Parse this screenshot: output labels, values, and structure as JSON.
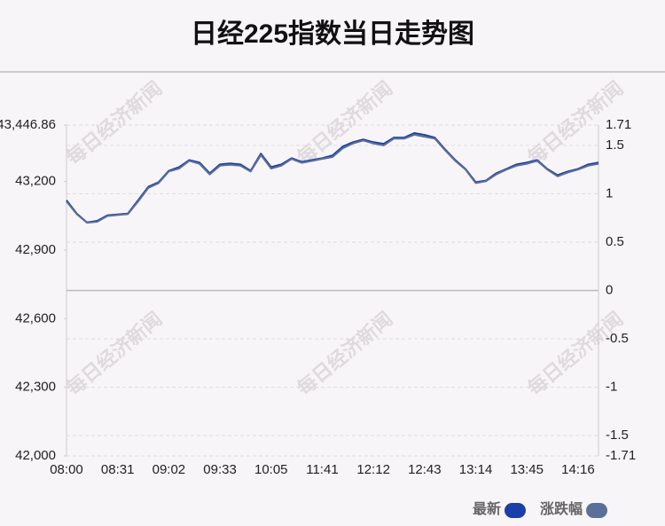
{
  "chart_data": {
    "type": "line",
    "title": "日经225指数当日走势图",
    "watermark": "每日经济新闻",
    "categories": [
      "08:00",
      null,
      null,
      null,
      null,
      "08:31",
      null,
      null,
      null,
      null,
      "09:02",
      null,
      null,
      null,
      null,
      "09:33",
      null,
      null,
      null,
      null,
      "10:05",
      null,
      null,
      null,
      null,
      "11:41",
      null,
      null,
      null,
      null,
      "12:12",
      null,
      null,
      null,
      null,
      "12:43",
      null,
      null,
      null,
      null,
      "13:14",
      null,
      null,
      null,
      null,
      "13:45",
      null,
      null,
      null,
      null,
      "14:16",
      null,
      null
    ],
    "series": [
      {
        "name": "最新",
        "color": "#1a3fa8",
        "axis": "y",
        "values": [
          43118,
          43060,
          43021,
          43028,
          43052,
          43056,
          43060,
          43118,
          43177,
          43197,
          43247,
          43263,
          43294,
          43283,
          43236,
          43275,
          43279,
          43275,
          43247,
          43322,
          43263,
          43275,
          43302,
          43286,
          43294,
          43302,
          43314,
          43353,
          43372,
          43384,
          43372,
          43365,
          43392,
          43392,
          43412,
          43404,
          43392,
          43341,
          43294,
          43255,
          43197,
          43204,
          43236,
          43255,
          43275,
          43283,
          43294,
          43255,
          43228,
          43244,
          43255,
          43275,
          43283
        ]
      },
      {
        "name": "涨跌幅",
        "color": "#5b6f98",
        "axis": "y2",
        "values": [
          0.92,
          0.79,
          0.7,
          0.71,
          0.77,
          0.78,
          0.79,
          0.92,
          1.06,
          1.11,
          1.23,
          1.26,
          1.34,
          1.31,
          1.2,
          1.29,
          1.3,
          1.29,
          1.23,
          1.4,
          1.26,
          1.29,
          1.36,
          1.32,
          1.34,
          1.36,
          1.38,
          1.47,
          1.52,
          1.55,
          1.52,
          1.5,
          1.57,
          1.57,
          1.61,
          1.59,
          1.57,
          1.45,
          1.34,
          1.25,
          1.11,
          1.13,
          1.2,
          1.25,
          1.29,
          1.31,
          1.34,
          1.25,
          1.18,
          1.22,
          1.25,
          1.29,
          1.31
        ]
      }
    ],
    "ylim": [
      42000,
      43446.86
    ],
    "yticks": [
      {
        "value": 43446.86,
        "label": "43,446.86"
      },
      {
        "value": 43200,
        "label": "43,200"
      },
      {
        "value": 42900,
        "label": "42,900"
      },
      {
        "value": 42600,
        "label": "42,600"
      },
      {
        "value": 42300,
        "label": "42,300"
      },
      {
        "value": 42000,
        "label": "42,000"
      }
    ],
    "y2lim": [
      -1.71,
      1.71
    ],
    "y2ticks": [
      1.71,
      1.5,
      1,
      0.5,
      0,
      -0.5,
      -1,
      -1.5,
      -1.71
    ],
    "grid": true
  }
}
